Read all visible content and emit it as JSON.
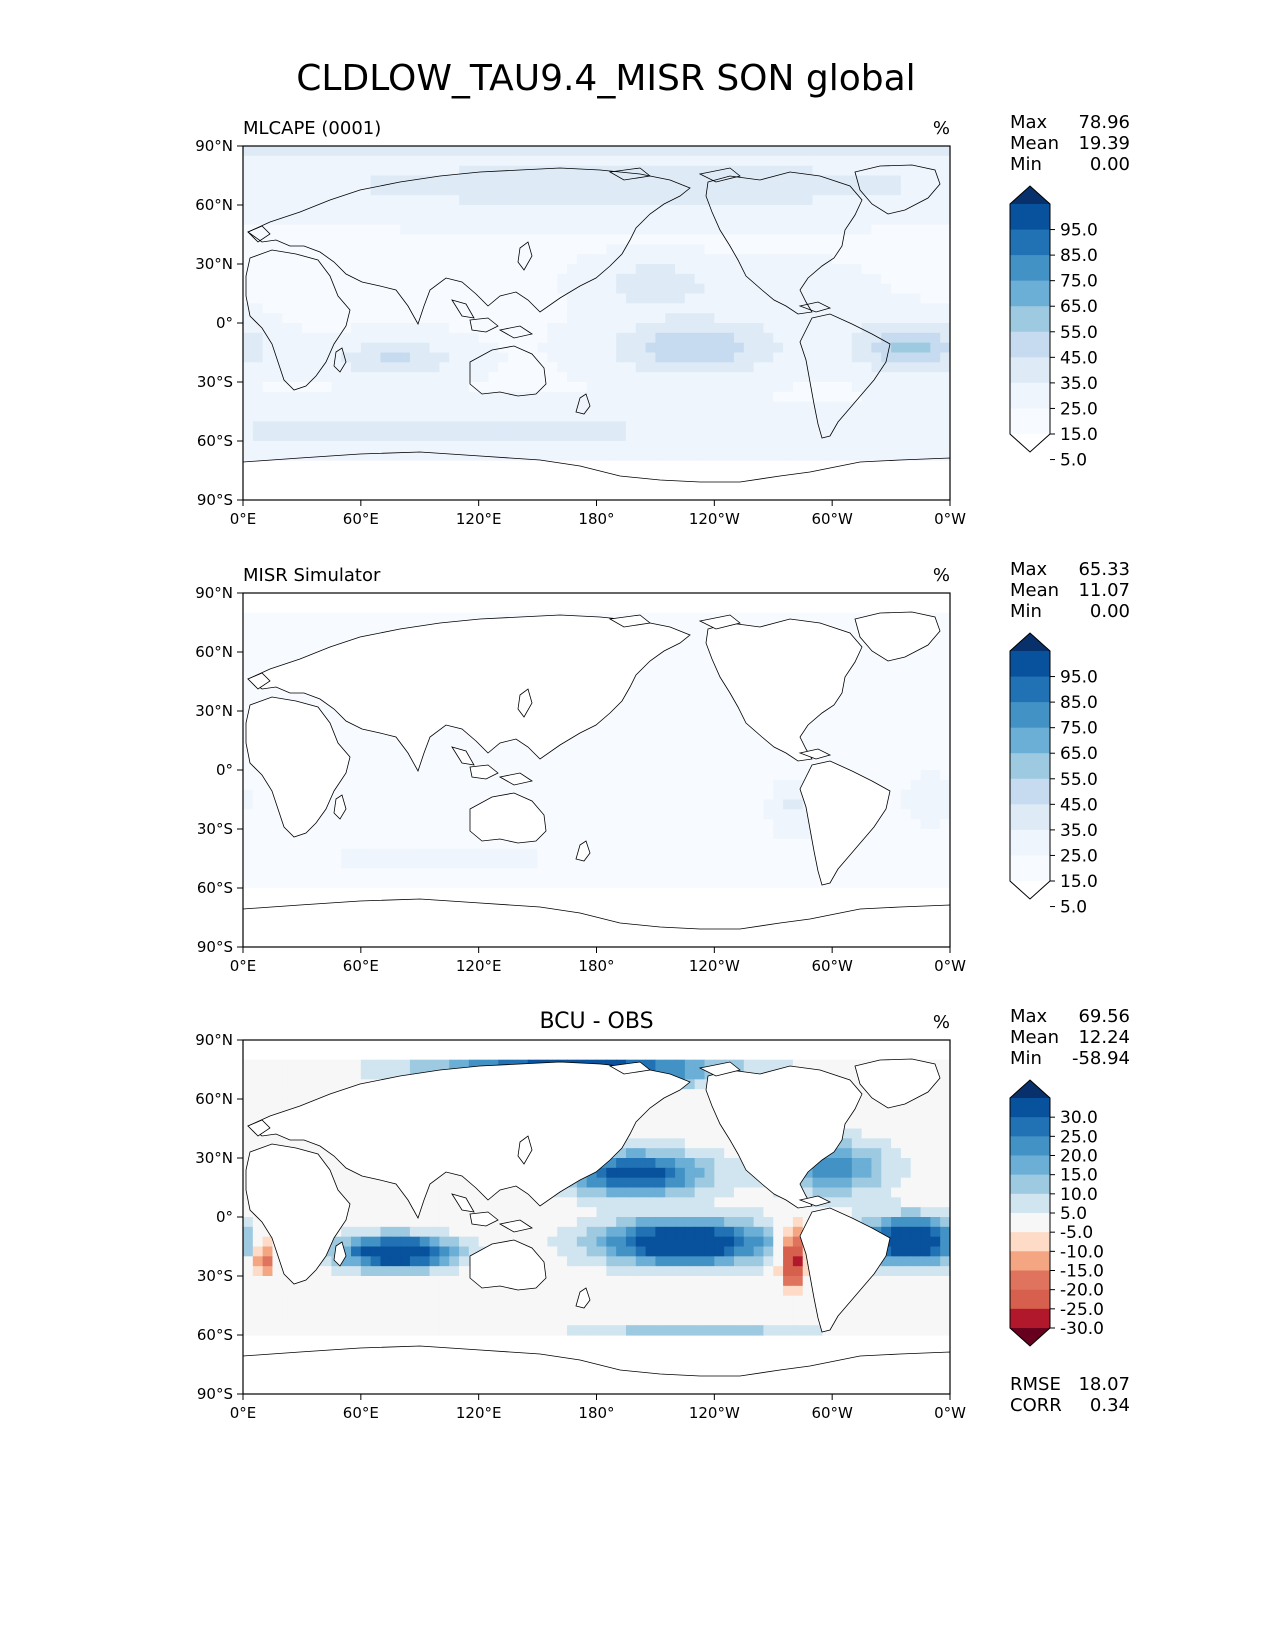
{
  "title": "CLDLOW_TAU9.4_MISR SON global",
  "axes": {
    "lat_ticks": [
      "90°N",
      "60°N",
      "30°N",
      "0°",
      "30°S",
      "60°S",
      "90°S"
    ],
    "lon_ticks": [
      "0°E",
      "60°E",
      "120°E",
      "180°",
      "120°W",
      "60°W",
      "0°W"
    ]
  },
  "panels": [
    {
      "title_left": "MLCAPE (0001)",
      "title_center": "",
      "units": "%",
      "stats": [
        {
          "label": "Max",
          "value": "78.96"
        },
        {
          "label": "Mean",
          "value": "19.39"
        },
        {
          "label": "Min",
          "value": "0.00"
        }
      ],
      "colorbar": {
        "labels": [
          "95.0",
          "85.0",
          "75.0",
          "65.0",
          "55.0",
          "45.0",
          "35.0",
          "25.0",
          "15.0",
          "5.0"
        ],
        "colors": [
          "#08306b",
          "#08519c",
          "#2171b5",
          "#4292c6",
          "#6baed6",
          "#9ecae1",
          "#c6dbef",
          "#deebf7",
          "#eef5fc",
          "#f7fbff",
          "#ffffff"
        ]
      },
      "field": "model"
    },
    {
      "title_left": "MISR Simulator",
      "title_center": "",
      "units": "%",
      "stats": [
        {
          "label": "Max",
          "value": "65.33"
        },
        {
          "label": "Mean",
          "value": "11.07"
        },
        {
          "label": "Min",
          "value": "0.00"
        }
      ],
      "colorbar": {
        "labels": [
          "95.0",
          "85.0",
          "75.0",
          "65.0",
          "55.0",
          "45.0",
          "35.0",
          "25.0",
          "15.0",
          "5.0"
        ],
        "colors": [
          "#08306b",
          "#08519c",
          "#2171b5",
          "#4292c6",
          "#6baed6",
          "#9ecae1",
          "#c6dbef",
          "#deebf7",
          "#eef5fc",
          "#f7fbff",
          "#ffffff"
        ]
      },
      "field": "obs"
    },
    {
      "title_left": "",
      "title_center": "BCU - OBS",
      "units": "%",
      "stats": [
        {
          "label": "Max",
          "value": "69.56"
        },
        {
          "label": "Mean",
          "value": "12.24"
        },
        {
          "label": "Min",
          "value": "-58.94"
        }
      ],
      "colorbar": {
        "labels": [
          "30.0",
          "25.0",
          "20.0",
          "15.0",
          "10.0",
          "5.0",
          "-5.0",
          "-10.0",
          "-15.0",
          "-20.0",
          "-25.0",
          "-30.0"
        ],
        "colors": [
          "#08306b",
          "#08519c",
          "#2171b5",
          "#4292c6",
          "#6baed6",
          "#9ecae1",
          "#d1e5f0",
          "#f7f7f7",
          "#fddbc7",
          "#f4a582",
          "#e0735d",
          "#d6604d",
          "#b2182b",
          "#67001f"
        ]
      },
      "field": "diff",
      "metrics": [
        {
          "label": "RMSE",
          "value": "18.07"
        },
        {
          "label": "CORR",
          "value": "0.34"
        }
      ]
    }
  ]
}
